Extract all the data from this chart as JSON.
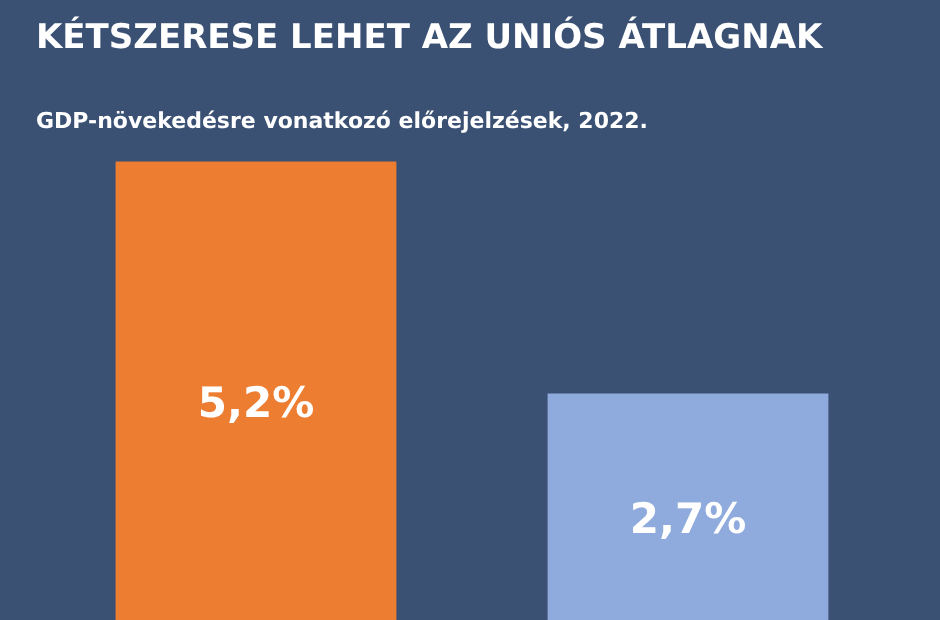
{
  "chart_data": {
    "type": "bar",
    "title": "KÉTSZERESE LEHET AZ UNIÓS ÁTLAGNAK",
    "subtitle": "GDP-növekedésre vonatkozó előrejelzések, 2022.",
    "categories": [
      null,
      null
    ],
    "values": [
      5.2,
      2.7
    ],
    "colors": [
      "#ed7d31",
      "#8faadc"
    ],
    "value_labels": [
      "5,2%",
      "2,7%"
    ],
    "tick_labels": false,
    "grid": false,
    "legend": false
  }
}
